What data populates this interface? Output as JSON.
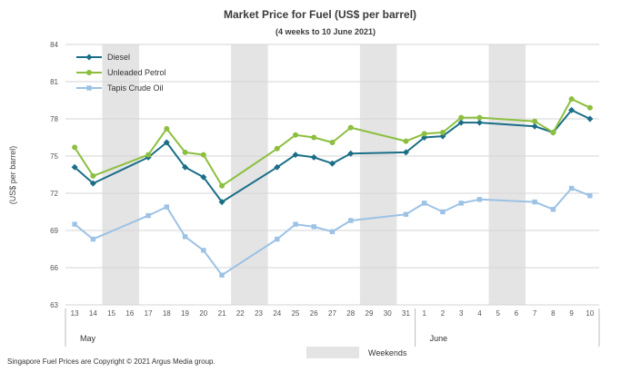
{
  "chart_data": {
    "type": "line",
    "title": "Market Price for Fuel  (US$  per barrel)",
    "subtitle": "(4 weeks to 10 June 2021)",
    "ylabel": "(US$ per barrel)",
    "ylim": [
      63,
      84
    ],
    "yticks": [
      63,
      66,
      69,
      72,
      75,
      78,
      81,
      84
    ],
    "grid": true,
    "legend_position": "top-left",
    "x_labels": [
      "13",
      "14",
      "15",
      "16",
      "17",
      "18",
      "19",
      "20",
      "21",
      "22",
      "23",
      "24",
      "25",
      "26",
      "27",
      "28",
      "29",
      "30",
      "31",
      "1",
      "2",
      "3",
      "4",
      "5",
      "6",
      "7",
      "8",
      "9",
      "10"
    ],
    "months": [
      {
        "label": "May",
        "start_index": 0,
        "end_index": 18
      },
      {
        "label": "June",
        "start_index": 19,
        "end_index": 28
      }
    ],
    "weekend_ranges": [
      [
        2,
        3
      ],
      [
        9,
        10
      ],
      [
        16,
        17
      ],
      [
        23,
        24
      ]
    ],
    "weekend_legend_label": "Weekends",
    "series": [
      {
        "name": "Diesel",
        "color": "#1a6e87",
        "marker": "diamond",
        "values": [
          74.1,
          72.8,
          null,
          null,
          74.9,
          76.1,
          74.1,
          73.3,
          71.3,
          null,
          null,
          74.1,
          75.1,
          74.9,
          74.4,
          75.2,
          null,
          null,
          75.3,
          76.5,
          76.6,
          77.7,
          77.7,
          null,
          null,
          77.4,
          76.9,
          78.7,
          78.0
        ]
      },
      {
        "name": "Unleaded Petrol",
        "color": "#8cbf3f",
        "marker": "circle",
        "values": [
          75.7,
          73.4,
          null,
          null,
          75.1,
          77.2,
          75.3,
          75.1,
          72.6,
          null,
          null,
          75.6,
          76.7,
          76.5,
          76.1,
          77.3,
          null,
          null,
          76.2,
          76.8,
          76.9,
          78.1,
          78.1,
          null,
          null,
          77.8,
          76.9,
          79.6,
          78.9
        ]
      },
      {
        "name": "Tapis Crude Oil",
        "color": "#9cc2e5",
        "marker": "square",
        "values": [
          69.5,
          68.3,
          null,
          null,
          70.2,
          70.9,
          68.5,
          67.4,
          65.4,
          null,
          null,
          68.3,
          69.5,
          69.3,
          68.9,
          69.8,
          null,
          null,
          70.3,
          71.2,
          70.5,
          71.2,
          71.5,
          null,
          null,
          71.3,
          70.7,
          72.4,
          71.8
        ]
      }
    ]
  },
  "footer": {
    "copyright": "Singapore  Fuel Prices are Copyright © 2021  Argus Media group."
  }
}
